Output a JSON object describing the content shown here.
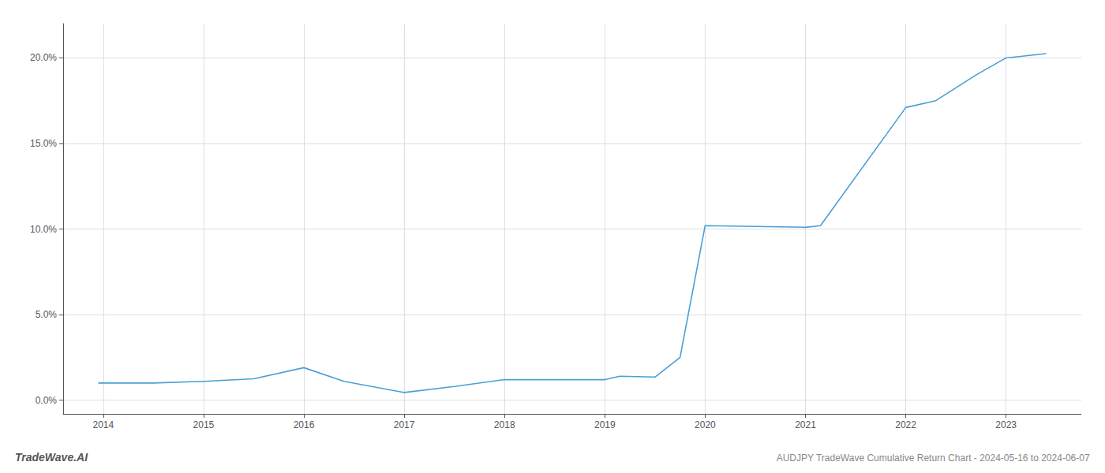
{
  "chart_data": {
    "type": "line",
    "title": "AUDJPY TradeWave Cumulative Return Chart - 2024-05-16 to 2024-06-07",
    "annotations": [
      "TradeWave.AI"
    ],
    "x": [
      2013.95,
      2014.5,
      2015.0,
      2015.5,
      2016.0,
      2016.4,
      2017.0,
      2017.5,
      2018.0,
      2018.5,
      2019.0,
      2019.15,
      2019.5,
      2019.75,
      2020.0,
      2020.5,
      2021.0,
      2021.15,
      2022.0,
      2022.3,
      2022.7,
      2023.0,
      2023.4
    ],
    "values": [
      1.0,
      1.0,
      1.1,
      1.25,
      1.9,
      1.1,
      0.45,
      0.8,
      1.2,
      1.2,
      1.2,
      1.4,
      1.35,
      2.5,
      10.2,
      10.15,
      10.1,
      10.2,
      17.1,
      17.5,
      19.0,
      20.0,
      20.25
    ],
    "color": "#4a9fd4",
    "xlim": [
      2013.6,
      2023.75
    ],
    "xticks": [
      2014,
      2015,
      2016,
      2017,
      2018,
      2019,
      2020,
      2021,
      2022,
      2023
    ],
    "ylim": [
      -0.8,
      22.0
    ],
    "yticks": [
      {
        "value": 0.0,
        "label": "0.0%"
      },
      {
        "value": 5.0,
        "label": "5.0%"
      },
      {
        "value": 10.0,
        "label": "10.0%"
      },
      {
        "value": 15.0,
        "label": "15.0%"
      },
      {
        "value": 20.0,
        "label": "20.0%"
      }
    ],
    "grid": true
  }
}
